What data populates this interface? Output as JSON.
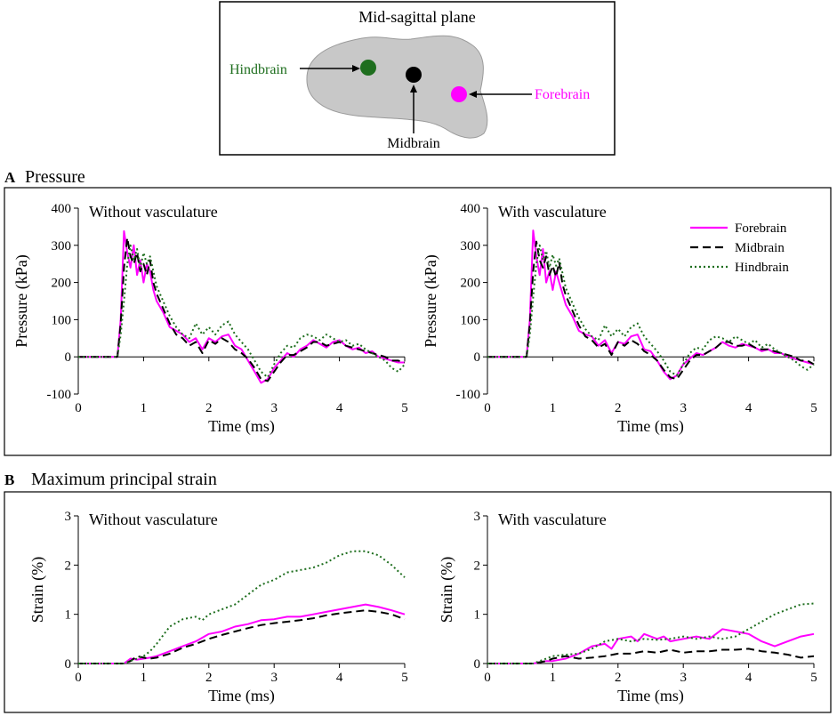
{
  "diagram": {
    "title": "Mid-sagittal plane",
    "regions": [
      {
        "name": "Hindbrain",
        "color": "#1e6e1e",
        "label_color": "#1e6e1e"
      },
      {
        "name": "Midbrain",
        "color": "#000000",
        "label_color": "#000000"
      },
      {
        "name": "Forebrain",
        "color": "#ff00ff",
        "label_color": "#ff00ff"
      }
    ]
  },
  "panels": {
    "A": {
      "letter": "A",
      "title": "Pressure"
    },
    "B": {
      "letter": "B",
      "title": "Maximum principal strain"
    }
  },
  "legend": [
    "Forebrain",
    "Midbrain",
    "Hindbrain"
  ],
  "series_style": {
    "Forebrain": {
      "color": "#ff00ff",
      "dash": "none"
    },
    "Midbrain": {
      "color": "#000000",
      "dash": "9,5"
    },
    "Hindbrain": {
      "color": "#1e6e1e",
      "dash": "2,3"
    }
  },
  "chart_data": [
    {
      "type": "line",
      "title": "Without vasculature",
      "xlabel": "Time (ms)",
      "ylabel": "Pressure (kPa)",
      "xlim": [
        0,
        5
      ],
      "ylim": [
        -100,
        400
      ],
      "xticks": [
        0,
        1,
        2,
        3,
        4,
        5
      ],
      "yticks": [
        -100,
        0,
        100,
        200,
        300,
        400
      ],
      "grid": false,
      "series": [
        {
          "name": "Forebrain",
          "x": [
            0,
            0.6,
            0.65,
            0.7,
            0.75,
            0.8,
            0.85,
            0.9,
            0.95,
            1.0,
            1.05,
            1.1,
            1.15,
            1.2,
            1.3,
            1.4,
            1.5,
            1.6,
            1.7,
            1.8,
            1.9,
            2.0,
            2.1,
            2.2,
            2.3,
            2.4,
            2.5,
            2.6,
            2.7,
            2.8,
            2.9,
            3.0,
            3.1,
            3.2,
            3.3,
            3.4,
            3.5,
            3.6,
            3.7,
            3.8,
            3.9,
            4.0,
            4.1,
            4.2,
            4.3,
            4.4,
            4.5,
            4.6,
            4.7,
            4.8,
            4.9,
            5.0
          ],
          "y": [
            0,
            0,
            100,
            338,
            280,
            240,
            300,
            220,
            260,
            200,
            250,
            230,
            180,
            150,
            120,
            80,
            70,
            60,
            40,
            50,
            20,
            50,
            40,
            55,
            60,
            30,
            20,
            -10,
            -40,
            -70,
            -60,
            -30,
            -10,
            10,
            0,
            20,
            30,
            45,
            35,
            25,
            40,
            45,
            30,
            20,
            25,
            10,
            15,
            0,
            -5,
            -10,
            -15,
            -15
          ]
        },
        {
          "name": "Midbrain",
          "x": [
            0,
            0.6,
            0.65,
            0.7,
            0.75,
            0.8,
            0.85,
            0.9,
            0.95,
            1.0,
            1.05,
            1.1,
            1.15,
            1.2,
            1.3,
            1.4,
            1.5,
            1.6,
            1.7,
            1.8,
            1.9,
            2.0,
            2.1,
            2.2,
            2.3,
            2.4,
            2.5,
            2.6,
            2.7,
            2.8,
            2.9,
            3.0,
            3.1,
            3.2,
            3.3,
            3.4,
            3.5,
            3.6,
            3.7,
            3.8,
            3.9,
            4.0,
            4.1,
            4.2,
            4.3,
            4.4,
            4.5,
            4.6,
            4.7,
            4.8,
            4.9,
            5.0
          ],
          "y": [
            0,
            0,
            90,
            240,
            320,
            270,
            250,
            280,
            230,
            250,
            220,
            260,
            200,
            170,
            130,
            90,
            60,
            50,
            30,
            40,
            10,
            45,
            35,
            50,
            40,
            20,
            10,
            -5,
            -30,
            -60,
            -65,
            -40,
            -15,
            5,
            5,
            15,
            25,
            40,
            40,
            30,
            35,
            40,
            30,
            25,
            20,
            15,
            10,
            5,
            0,
            -10,
            -10,
            -15
          ]
        },
        {
          "name": "Hindbrain",
          "x": [
            0,
            0.6,
            0.65,
            0.7,
            0.75,
            0.8,
            0.85,
            0.9,
            0.95,
            1.0,
            1.05,
            1.1,
            1.15,
            1.2,
            1.3,
            1.4,
            1.5,
            1.6,
            1.7,
            1.8,
            1.9,
            2.0,
            2.1,
            2.2,
            2.3,
            2.4,
            2.5,
            2.6,
            2.7,
            2.8,
            2.9,
            3.0,
            3.1,
            3.2,
            3.3,
            3.4,
            3.5,
            3.6,
            3.7,
            3.8,
            3.9,
            4.0,
            4.1,
            4.2,
            4.3,
            4.4,
            4.5,
            4.6,
            4.7,
            4.8,
            4.9,
            5.0
          ],
          "y": [
            0,
            0,
            60,
            150,
            250,
            300,
            260,
            290,
            240,
            280,
            250,
            270,
            230,
            190,
            150,
            110,
            80,
            60,
            50,
            90,
            60,
            80,
            60,
            85,
            95,
            60,
            40,
            20,
            -10,
            -40,
            -55,
            -20,
            10,
            30,
            25,
            50,
            60,
            55,
            45,
            60,
            50,
            40,
            45,
            30,
            35,
            20,
            10,
            0,
            -10,
            -30,
            -40,
            -20
          ]
        }
      ]
    },
    {
      "type": "line",
      "title": "With vasculature",
      "xlabel": "Time (ms)",
      "ylabel": "Pressure (kPa)",
      "xlim": [
        0,
        5
      ],
      "ylim": [
        -100,
        400
      ],
      "xticks": [
        0,
        1,
        2,
        3,
        4,
        5
      ],
      "yticks": [
        -100,
        0,
        100,
        200,
        300,
        400
      ],
      "grid": false,
      "legend_position": "top-right",
      "series": [
        {
          "name": "Forebrain",
          "x": [
            0,
            0.6,
            0.65,
            0.7,
            0.75,
            0.8,
            0.85,
            0.9,
            0.95,
            1.0,
            1.05,
            1.1,
            1.15,
            1.2,
            1.3,
            1.4,
            1.5,
            1.6,
            1.7,
            1.8,
            1.9,
            2.0,
            2.1,
            2.2,
            2.3,
            2.4,
            2.5,
            2.6,
            2.7,
            2.8,
            2.9,
            3.0,
            3.1,
            3.2,
            3.3,
            3.4,
            3.5,
            3.6,
            3.7,
            3.8,
            3.9,
            4.0,
            4.1,
            4.2,
            4.3,
            4.4,
            4.5,
            4.6,
            4.7,
            4.8,
            4.9,
            5.0
          ],
          "y": [
            0,
            0,
            100,
            340,
            270,
            220,
            290,
            200,
            230,
            180,
            230,
            200,
            170,
            140,
            110,
            70,
            60,
            55,
            30,
            45,
            10,
            40,
            35,
            55,
            60,
            20,
            15,
            -10,
            -40,
            -60,
            -50,
            -20,
            -5,
            10,
            5,
            15,
            25,
            40,
            30,
            25,
            35,
            30,
            25,
            15,
            20,
            10,
            10,
            0,
            -5,
            -10,
            -15,
            -20
          ]
        },
        {
          "name": "Midbrain",
          "x": [
            0,
            0.6,
            0.65,
            0.7,
            0.75,
            0.8,
            0.85,
            0.9,
            0.95,
            1.0,
            1.05,
            1.1,
            1.15,
            1.2,
            1.3,
            1.4,
            1.5,
            1.6,
            1.7,
            1.8,
            1.9,
            2.0,
            2.1,
            2.2,
            2.3,
            2.4,
            2.5,
            2.6,
            2.7,
            2.8,
            2.9,
            3.0,
            3.1,
            3.2,
            3.3,
            3.4,
            3.5,
            3.6,
            3.7,
            3.8,
            3.9,
            4.0,
            4.1,
            4.2,
            4.3,
            4.4,
            4.5,
            4.6,
            4.7,
            4.8,
            4.9,
            5.0
          ],
          "y": [
            0,
            0,
            90,
            230,
            310,
            260,
            240,
            270,
            220,
            245,
            215,
            255,
            195,
            165,
            125,
            85,
            55,
            45,
            25,
            35,
            5,
            40,
            30,
            45,
            35,
            15,
            5,
            -10,
            -35,
            -55,
            -60,
            -35,
            -10,
            5,
            5,
            15,
            25,
            40,
            40,
            30,
            30,
            35,
            25,
            20,
            20,
            15,
            10,
            5,
            0,
            -10,
            -10,
            -20
          ]
        },
        {
          "name": "Hindbrain",
          "x": [
            0,
            0.6,
            0.65,
            0.7,
            0.75,
            0.8,
            0.85,
            0.9,
            0.95,
            1.0,
            1.05,
            1.1,
            1.15,
            1.2,
            1.3,
            1.4,
            1.5,
            1.6,
            1.7,
            1.8,
            1.9,
            2.0,
            2.1,
            2.2,
            2.3,
            2.4,
            2.5,
            2.6,
            2.7,
            2.8,
            2.9,
            3.0,
            3.1,
            3.2,
            3.3,
            3.4,
            3.5,
            3.6,
            3.7,
            3.8,
            3.9,
            4.0,
            4.1,
            4.2,
            4.3,
            4.4,
            4.5,
            4.6,
            4.7,
            4.8,
            4.9,
            5.0
          ],
          "y": [
            0,
            0,
            60,
            160,
            250,
            300,
            260,
            285,
            240,
            275,
            245,
            265,
            225,
            185,
            145,
            105,
            75,
            55,
            45,
            85,
            55,
            75,
            55,
            80,
            90,
            55,
            35,
            15,
            -10,
            -40,
            -50,
            -20,
            10,
            25,
            20,
            45,
            55,
            50,
            40,
            55,
            45,
            35,
            45,
            25,
            35,
            20,
            10,
            0,
            -10,
            -25,
            -35,
            -20
          ]
        }
      ]
    },
    {
      "type": "line",
      "title": "Without vasculature",
      "xlabel": "Time (ms)",
      "ylabel": "Strain (%)",
      "xlim": [
        0,
        5
      ],
      "ylim": [
        0,
        3
      ],
      "xticks": [
        0,
        1,
        2,
        3,
        4,
        5
      ],
      "yticks": [
        0,
        1,
        2,
        3
      ],
      "grid": false,
      "series": [
        {
          "name": "Forebrain",
          "x": [
            0,
            0.7,
            0.8,
            0.9,
            1.0,
            1.1,
            1.2,
            1.4,
            1.6,
            1.8,
            2.0,
            2.2,
            2.4,
            2.6,
            2.8,
            3.0,
            3.2,
            3.4,
            3.6,
            3.8,
            4.0,
            4.2,
            4.4,
            4.6,
            4.8,
            5.0
          ],
          "y": [
            0,
            0,
            0.1,
            0.08,
            0.1,
            0.12,
            0.15,
            0.25,
            0.35,
            0.45,
            0.6,
            0.65,
            0.75,
            0.8,
            0.88,
            0.9,
            0.95,
            0.95,
            1.0,
            1.05,
            1.1,
            1.15,
            1.2,
            1.15,
            1.08,
            1.0
          ]
        },
        {
          "name": "Midbrain",
          "x": [
            0,
            0.7,
            0.8,
            0.9,
            1.0,
            1.1,
            1.2,
            1.4,
            1.6,
            1.8,
            2.0,
            2.2,
            2.4,
            2.6,
            2.8,
            3.0,
            3.2,
            3.4,
            3.6,
            3.8,
            4.0,
            4.2,
            4.4,
            4.6,
            4.8,
            5.0
          ],
          "y": [
            0,
            0,
            0.05,
            0.15,
            0.12,
            0.1,
            0.12,
            0.2,
            0.32,
            0.4,
            0.5,
            0.58,
            0.65,
            0.72,
            0.78,
            0.82,
            0.85,
            0.88,
            0.92,
            0.98,
            1.02,
            1.05,
            1.08,
            1.05,
            1.0,
            0.9
          ]
        },
        {
          "name": "Hindbrain",
          "x": [
            0,
            0.7,
            0.8,
            0.9,
            1.0,
            1.1,
            1.2,
            1.4,
            1.6,
            1.8,
            1.9,
            2.0,
            2.2,
            2.4,
            2.6,
            2.8,
            3.0,
            3.2,
            3.4,
            3.6,
            3.8,
            4.0,
            4.2,
            4.4,
            4.6,
            4.8,
            5.0
          ],
          "y": [
            0,
            0,
            0.05,
            0.1,
            0.15,
            0.25,
            0.4,
            0.75,
            0.9,
            0.95,
            0.88,
            1.0,
            1.1,
            1.2,
            1.4,
            1.6,
            1.7,
            1.85,
            1.9,
            1.95,
            2.05,
            2.2,
            2.28,
            2.28,
            2.2,
            2.0,
            1.75
          ]
        }
      ]
    },
    {
      "type": "line",
      "title": "With vasculature",
      "xlabel": "Time (ms)",
      "ylabel": "Strain (%)",
      "xlim": [
        0,
        5
      ],
      "ylim": [
        0,
        3
      ],
      "xticks": [
        0,
        1,
        2,
        3,
        4,
        5
      ],
      "yticks": [
        0,
        1,
        2,
        3
      ],
      "grid": false,
      "series": [
        {
          "name": "Forebrain",
          "x": [
            0,
            0.7,
            0.9,
            1.0,
            1.2,
            1.4,
            1.6,
            1.8,
            1.9,
            2.0,
            2.2,
            2.3,
            2.4,
            2.6,
            2.7,
            2.8,
            3.0,
            3.2,
            3.4,
            3.6,
            3.8,
            4.0,
            4.2,
            4.4,
            4.6,
            4.8,
            5.0
          ],
          "y": [
            0,
            0,
            0.05,
            0.05,
            0.1,
            0.2,
            0.35,
            0.4,
            0.3,
            0.5,
            0.55,
            0.45,
            0.6,
            0.5,
            0.55,
            0.45,
            0.5,
            0.55,
            0.5,
            0.7,
            0.65,
            0.6,
            0.45,
            0.35,
            0.45,
            0.55,
            0.6
          ]
        },
        {
          "name": "Midbrain",
          "x": [
            0,
            0.7,
            0.9,
            1.0,
            1.2,
            1.4,
            1.6,
            1.8,
            2.0,
            2.2,
            2.4,
            2.6,
            2.8,
            3.0,
            3.2,
            3.4,
            3.6,
            3.8,
            4.0,
            4.2,
            4.4,
            4.6,
            4.8,
            5.0
          ],
          "y": [
            0,
            0,
            0.05,
            0.1,
            0.15,
            0.1,
            0.12,
            0.15,
            0.2,
            0.2,
            0.25,
            0.22,
            0.28,
            0.22,
            0.25,
            0.25,
            0.28,
            0.28,
            0.3,
            0.25,
            0.22,
            0.18,
            0.12,
            0.15
          ]
        },
        {
          "name": "Hindbrain",
          "x": [
            0,
            0.7,
            0.9,
            1.0,
            1.2,
            1.4,
            1.6,
            1.8,
            2.0,
            2.2,
            2.4,
            2.6,
            2.8,
            3.0,
            3.2,
            3.4,
            3.6,
            3.8,
            4.0,
            4.2,
            4.4,
            4.6,
            4.8,
            5.0
          ],
          "y": [
            0,
            0,
            0.1,
            0.15,
            0.18,
            0.2,
            0.3,
            0.45,
            0.5,
            0.45,
            0.5,
            0.48,
            0.5,
            0.55,
            0.5,
            0.55,
            0.5,
            0.55,
            0.7,
            0.85,
            1.0,
            1.1,
            1.2,
            1.22
          ]
        }
      ]
    }
  ]
}
